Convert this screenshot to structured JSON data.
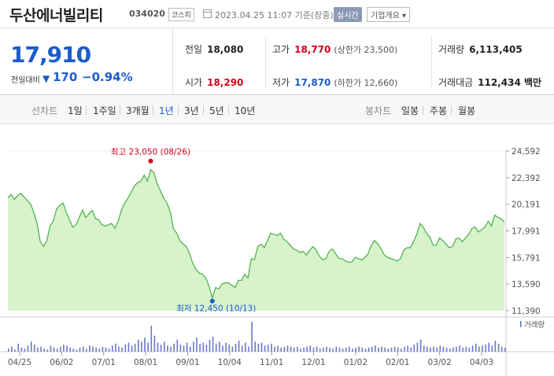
{
  "header": {
    "name": "두산에너빌리티",
    "code": "034020",
    "market": "코스피",
    "datetime": "2023.04.25 11:07 기준(장중)",
    "realtime": "실시간",
    "company_info": "기업개요"
  },
  "summary": {
    "price": "17,910",
    "change_label": "전일대비",
    "change_arrow": "▼",
    "change": "170",
    "change_pct": "−0.94%",
    "prev_label": "전일",
    "prev": "18,080",
    "high_label": "고가",
    "high": "18,770",
    "upper_limit": "(상한가 23,500)",
    "volume_label": "거래량",
    "volume": "6,113,405",
    "open_label": "시가",
    "open": "18,290",
    "low_label": "저가",
    "low": "17,870",
    "lower_limit": "(하한가 12,660)",
    "value_label": "거래대금",
    "value": "112,434 백만"
  },
  "tabs": {
    "line_chart": "선차트",
    "periods": [
      "1일",
      "1주일",
      "3개월",
      "1년",
      "3년",
      "5년",
      "10년"
    ],
    "active_period": "1년",
    "candle_chart": "봉차트",
    "candles": [
      "일봉",
      "주봉",
      "월봉"
    ]
  },
  "colors": {
    "up": "#d6001c",
    "down": "#1a5dc9",
    "line": "#45b044",
    "fill": "#d8f2cc"
  },
  "chart_data": {
    "type": "area",
    "y_ticks": [
      "24,592",
      "22,392",
      "20,191",
      "17,991",
      "15,791",
      "13,590",
      "11,390"
    ],
    "y_range": [
      11390,
      24592
    ],
    "x_labels": [
      "04/25",
      "06/02",
      "07/01",
      "08/01",
      "09/01",
      "10/04",
      "11/01",
      "12/01",
      "01/02",
      "02/01",
      "03/02",
      "04/03"
    ],
    "max_label": "최고 23,050 (08/26)",
    "min_label": "최저 12,450 (10/13)",
    "volume_label": "거래량",
    "price": [
      20700,
      21000,
      20600,
      20900,
      21100,
      20800,
      20500,
      20200,
      19500,
      18600,
      17100,
      16700,
      17200,
      18400,
      18800,
      19800,
      20100,
      20300,
      19500,
      18900,
      18300,
      18500,
      19100,
      19700,
      19100,
      19400,
      19700,
      19000,
      18900,
      18500,
      18400,
      18500,
      18600,
      18200,
      18800,
      19700,
      20300,
      20700,
      21200,
      21700,
      22000,
      22100,
      22600,
      22100,
      23050,
      22800,
      21900,
      21300,
      20700,
      20300,
      19600,
      18200,
      17800,
      17200,
      16900,
      16700,
      16100,
      15300,
      14800,
      14500,
      14400,
      14100,
      13400,
      12450,
      13300,
      13200,
      13600,
      13700,
      13700,
      13500,
      13300,
      13900,
      13900,
      14400,
      14100,
      15700,
      15600,
      16700,
      16900,
      16600,
      17200,
      17800,
      17700,
      17600,
      17800,
      17300,
      17100,
      16800,
      16500,
      16400,
      16200,
      16300,
      16000,
      16400,
      16700,
      16400,
      15900,
      15600,
      15700,
      16300,
      16500,
      16100,
      15700,
      15700,
      15500,
      15400,
      15400,
      15800,
      15700,
      15600,
      15800,
      16100,
      16800,
      17200,
      16900,
      16500,
      16000,
      15800,
      15700,
      15600,
      15500,
      15700,
      16400,
      16600,
      16600,
      17100,
      17700,
      18600,
      18300,
      17800,
      17500,
      16800,
      16800,
      17400,
      17200,
      16900,
      16600,
      16700,
      17300,
      17400,
      17100,
      17400,
      17700,
      18200,
      18300,
      17900,
      18100,
      18300,
      18800,
      18400,
      19300,
      19100,
      19000,
      18700
    ],
    "volume": [
      3,
      5,
      2,
      8,
      4,
      3,
      6,
      10,
      7,
      4,
      5,
      3,
      2,
      6,
      4,
      3,
      5,
      7,
      6,
      4,
      3,
      2,
      4,
      5,
      3,
      6,
      5,
      4,
      3,
      5,
      4,
      3,
      6,
      8,
      5,
      4,
      7,
      9,
      6,
      8,
      12,
      10,
      14,
      9,
      26,
      16,
      9,
      7,
      10,
      6,
      5,
      8,
      12,
      7,
      6,
      9,
      5,
      10,
      14,
      8,
      9,
      7,
      12,
      15,
      8,
      10,
      6,
      9,
      7,
      5,
      8,
      11,
      6,
      9,
      5,
      30,
      10,
      8,
      9,
      6,
      7,
      8,
      5,
      6,
      4,
      5,
      6,
      5,
      4,
      5,
      3,
      4,
      5,
      6,
      4,
      5,
      3,
      4,
      5,
      4,
      3,
      5,
      4,
      3,
      4,
      5,
      3,
      4,
      5,
      4,
      3,
      4,
      5,
      6,
      4,
      5,
      4,
      3,
      4,
      5,
      4,
      3,
      5,
      6,
      4,
      7,
      9,
      12,
      6,
      5,
      4,
      5,
      4,
      6,
      5,
      4,
      3,
      4,
      5,
      6,
      4,
      5,
      4,
      6,
      8,
      5,
      6,
      7,
      9,
      6,
      11,
      8,
      5,
      4
    ]
  }
}
